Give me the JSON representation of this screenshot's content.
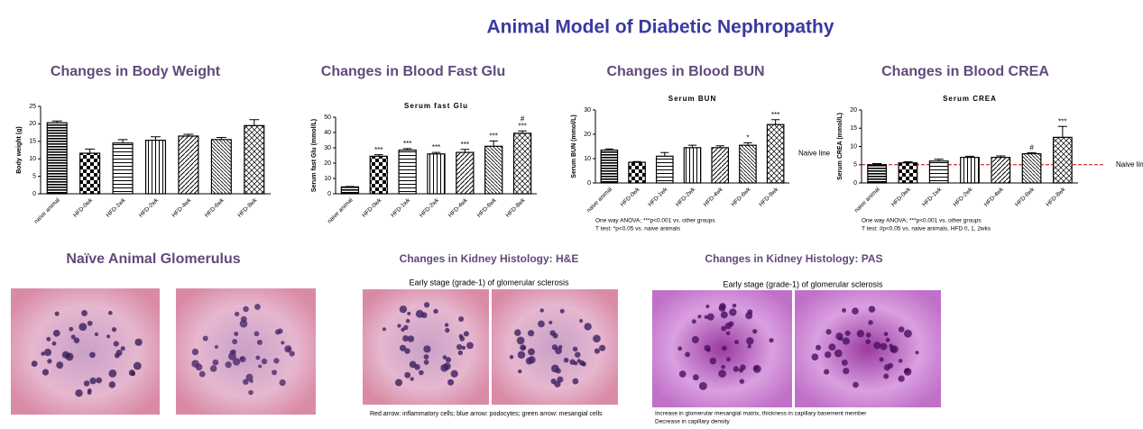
{
  "title": "Animal Model of Diabetic Nephropathy",
  "chart_data": [
    {
      "type": "bar",
      "title": "Changes in  Body Weight",
      "ylabel": "Body weight (g)",
      "color": "#000000",
      "categories": [
        "naïve animal",
        "HFD-0wk",
        "HFD-1wk",
        "HFD-2wk",
        "HFD-4wk",
        "HFD-6wk",
        "HFD-8wk"
      ],
      "values": [
        20.3,
        11.6,
        14.5,
        15.3,
        16.5,
        15.5,
        19.5
      ],
      "errors": [
        0.5,
        1.2,
        1,
        1,
        0.5,
        0.6,
        1.7
      ],
      "ylim": [
        0,
        25
      ],
      "yticks": [
        0,
        5,
        10,
        15,
        20,
        25
      ]
    },
    {
      "type": "bar",
      "title": "Changes in Blood Fast Glu",
      "subtitle": "Serum fast Glu",
      "ylabel": "Serum fast Glu (mmol/L)",
      "color": "#000000",
      "categories": [
        "naive animal",
        "HFD-0wk",
        "HFD-1wk",
        "HFD-2wk",
        "HFD-4wk",
        "HFD-6wk",
        "HFD-8wk"
      ],
      "values": [
        4.5,
        24.5,
        28.5,
        26,
        27,
        31,
        39.5
      ],
      "errors": [
        0.3,
        1,
        1,
        1,
        2,
        3.5,
        1.5
      ],
      "annotations": [
        null,
        "***",
        "***",
        "***",
        "***",
        "***",
        "#\n***"
      ],
      "ylim": [
        0,
        50
      ],
      "yticks": [
        0,
        10,
        20,
        30,
        40,
        50
      ]
    },
    {
      "type": "bar",
      "title": "Changes in Blood BUN",
      "subtitle": "Serum BUN",
      "ylabel": "Serum BUN (mmol/L)",
      "color": "#000000",
      "categories": [
        "naive animal",
        "HFD-0wk",
        "HFD-1wk",
        "HFD-2wk",
        "HFD-4wk",
        "HFD-6wk",
        "HFD-8wk"
      ],
      "values": [
        13.5,
        8.5,
        11,
        14.5,
        14.5,
        15.5,
        24
      ],
      "errors": [
        0.5,
        0.3,
        1.5,
        1,
        0.8,
        1,
        2
      ],
      "annotations": [
        null,
        null,
        null,
        null,
        null,
        "*",
        "***"
      ],
      "ref_line": {
        "value": 12,
        "label": "Naive line"
      },
      "notes": [
        "One way ANOVA; ***p<0.001 vs. other groups",
        "T test: *p<0.05 vs. naive animals"
      ],
      "ylim": [
        0,
        30
      ],
      "yticks": [
        0,
        10,
        20,
        30
      ]
    },
    {
      "type": "bar",
      "title": "Changes in Blood CREA",
      "subtitle": "Serum CREA",
      "ylabel": "Serum CREA (mmol/L)",
      "color": "#000000",
      "categories": [
        "naive animal",
        "HFD-0wk",
        "HFD-1wk",
        "HFD-2wk",
        "HFD-4wk",
        "HFD-6wk",
        "HFD-8wk"
      ],
      "values": [
        5,
        5.5,
        6,
        7,
        7,
        8,
        12.5
      ],
      "errors": [
        0.3,
        0.3,
        0.5,
        0.3,
        0.4,
        0.3,
        3
      ],
      "annotations": [
        null,
        null,
        null,
        null,
        null,
        "#",
        "***"
      ],
      "ref_line": {
        "value": 5,
        "label": "Naive line"
      },
      "notes": [
        "One way ANOVA; ***p<0.001 vs. other groups",
        "T test: #p<0.05 vs. naive animals, HFD 0, 1, 2wks"
      ],
      "ylim": [
        0,
        20
      ],
      "yticks": [
        0,
        5,
        10,
        15,
        20
      ]
    }
  ],
  "histology": {
    "naive": {
      "title": "Naïve Animal Glomerulus"
    },
    "he": {
      "title": "Changes in Kidney Histology: H&E",
      "caption": "Early stage (grade-1) of glomerular sclerosis",
      "note": "Red arrow: inflammatory cells; blue arrow: podocytes; green arrow: mesangial cells"
    },
    "pas": {
      "title": "Changes in Kidney Histology: PAS",
      "caption": "Early stage (grade-1) of glomerular sclerosis",
      "notes": [
        "Increase in glomerular mesangial matrix, thickness in capillary basement member",
        "Decrease in capillary density"
      ]
    }
  }
}
